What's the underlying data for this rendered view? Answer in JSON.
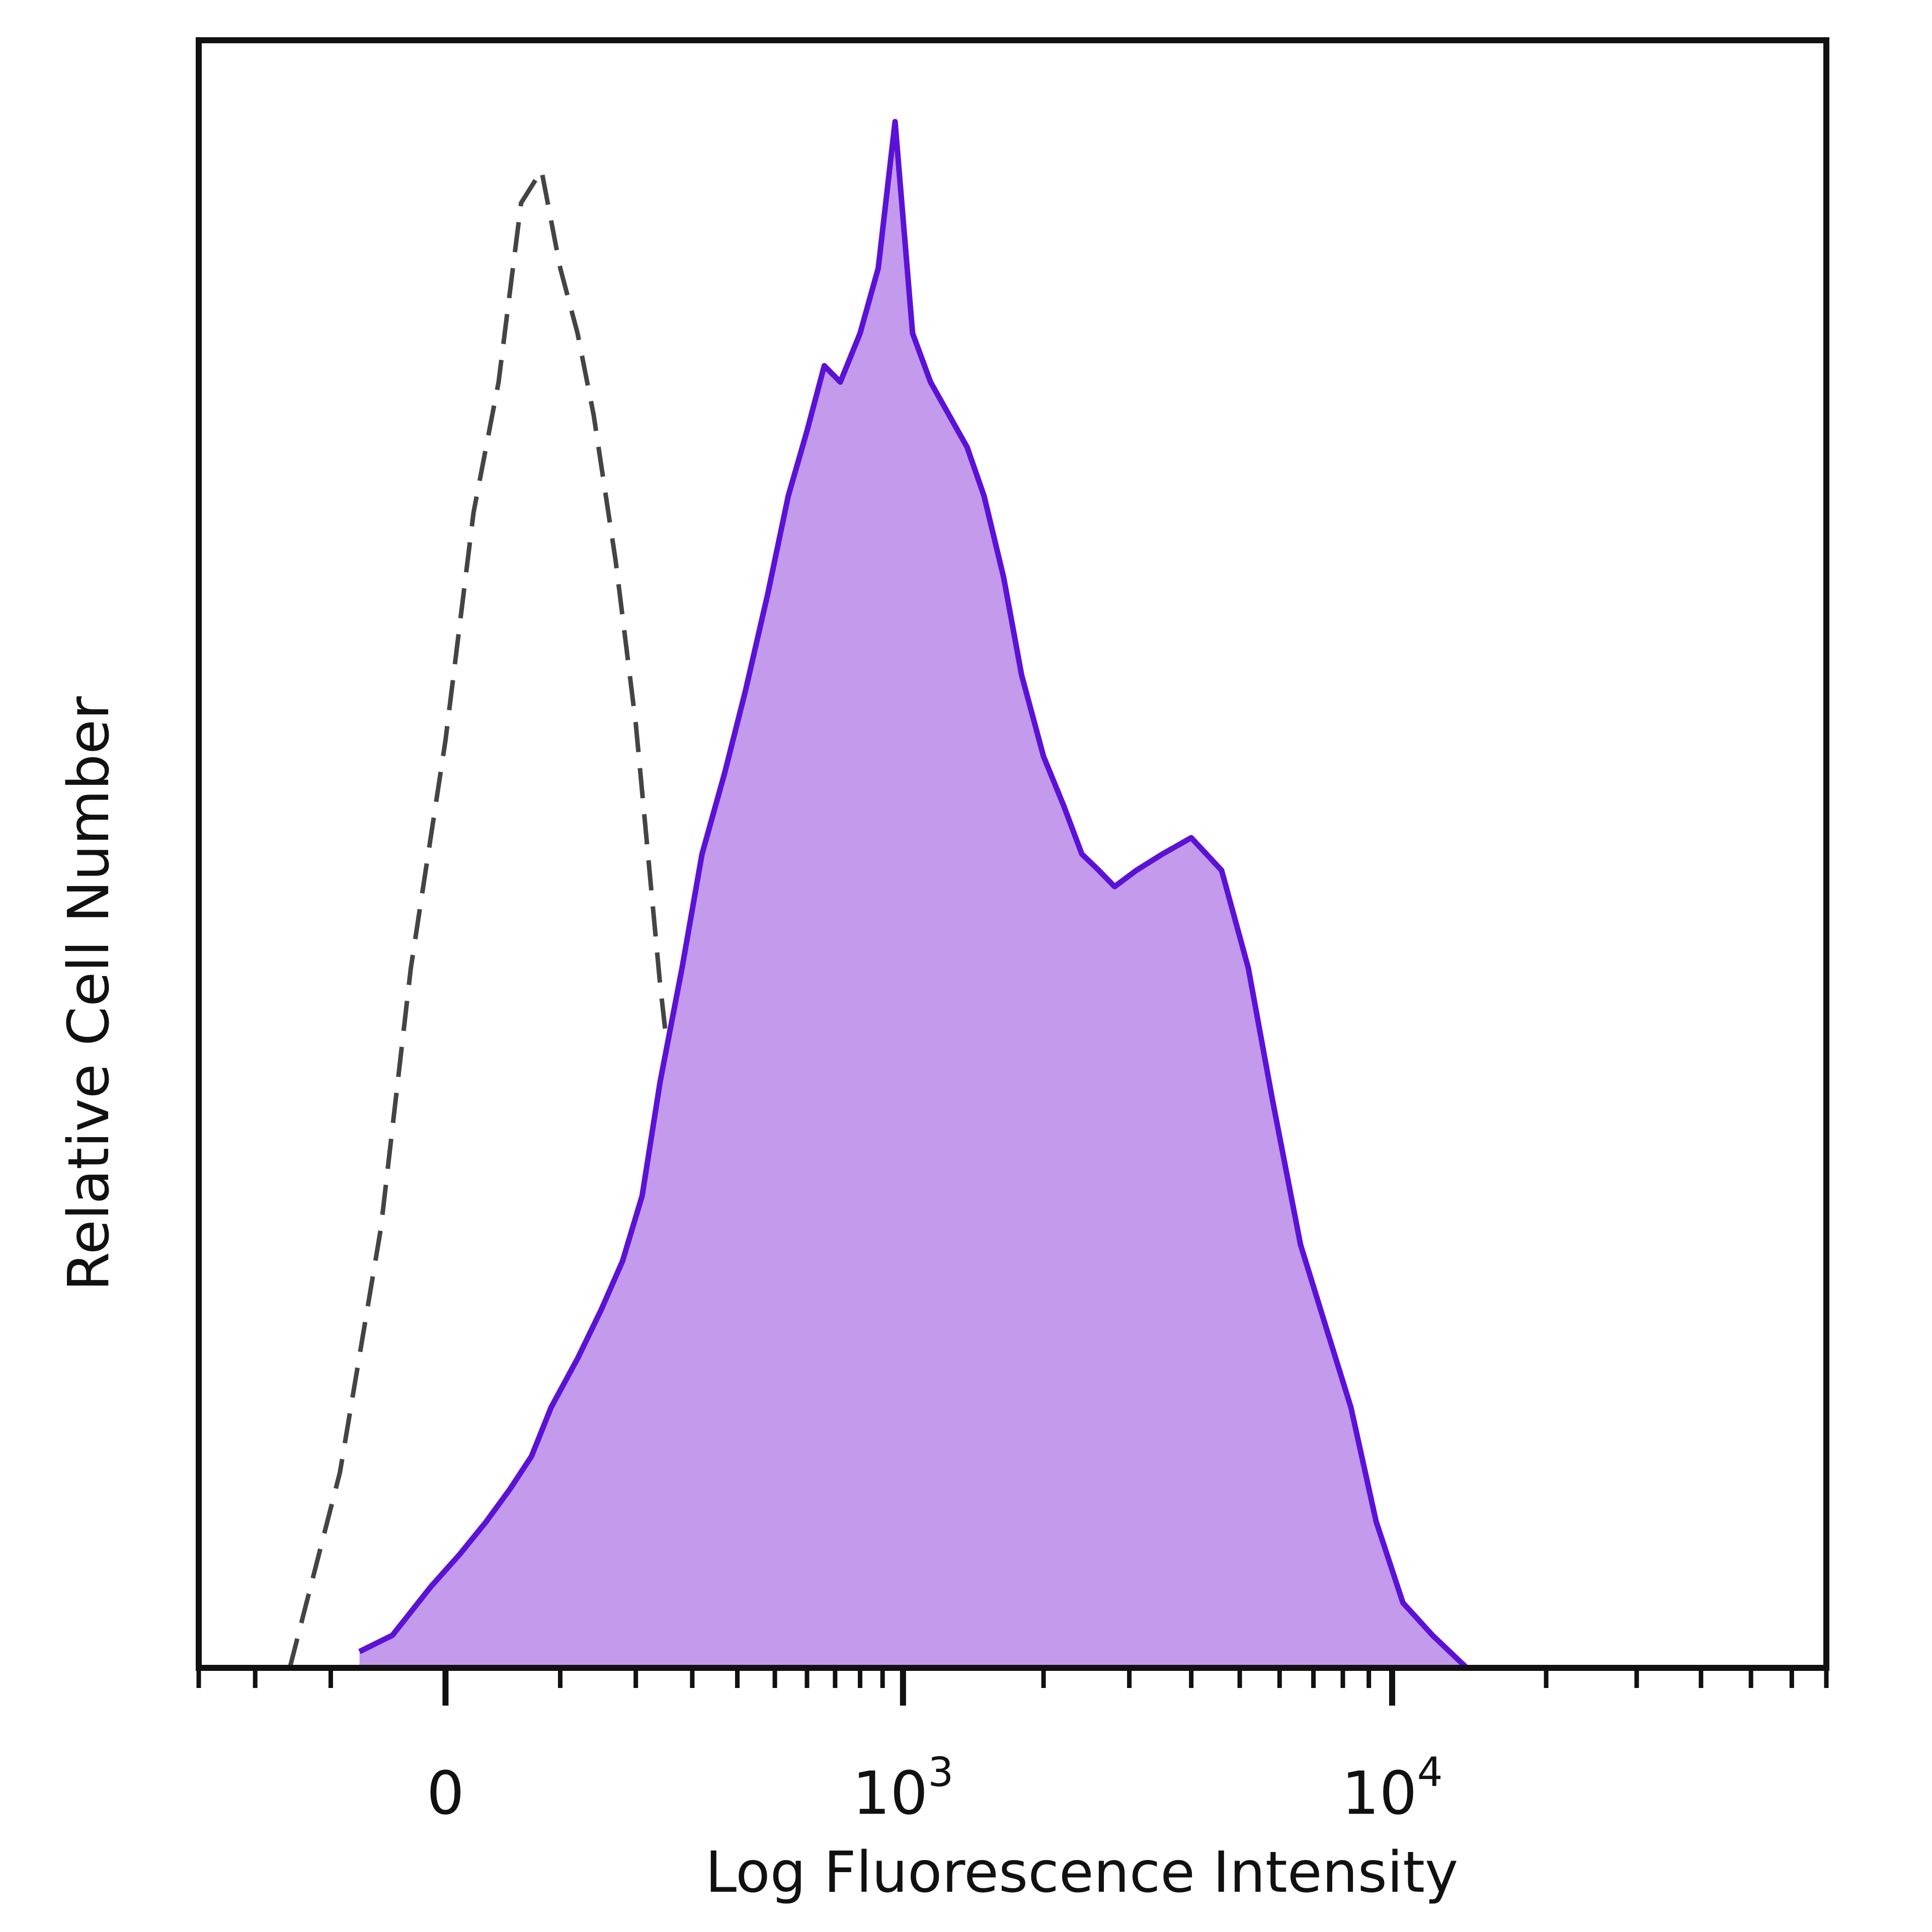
{
  "chart_data": {
    "type": "area",
    "title": "",
    "xlabel": "Log Fluorescence Intensity",
    "ylabel": "Relative Cell Number",
    "x_scale": "biexponential",
    "xlim": [
      -300,
      70000
    ],
    "ylim": [
      0,
      100
    ],
    "grid": false,
    "legend": "none",
    "x_ticks": [
      {
        "base": "0",
        "exp": "",
        "value": 0
      },
      {
        "base": "10",
        "exp": "3",
        "value": 1000
      },
      {
        "base": "10",
        "exp": "4",
        "value": 10000
      }
    ],
    "series": [
      {
        "style": "dashed",
        "color": "#444444",
        "x": [
          -150,
          -90,
          -50,
          -25,
          0,
          20,
          40,
          60,
          80,
          100,
          120,
          140,
          170,
          200,
          240,
          280,
          330,
          380,
          430,
          500,
          580,
          680,
          800,
          950,
          1100
        ],
        "y": [
          0,
          12,
          27,
          43,
          57,
          71,
          79,
          90,
          92,
          86,
          82,
          77,
          68,
          58,
          42,
          30,
          20,
          14,
          8,
          6,
          4,
          3,
          2,
          1,
          0
        ]
      },
      {
        "style": "filled",
        "color": "#5b12d6",
        "fill": "#c39aec",
        "x": [
          -70,
          -40,
          -10,
          10,
          30,
          50,
          70,
          90,
          120,
          150,
          180,
          210,
          240,
          280,
          320,
          370,
          420,
          480,
          540,
          600,
          660,
          720,
          800,
          880,
          960,
          1050,
          1150,
          1260,
          1380,
          1500,
          1650,
          1800,
          2000,
          2200,
          2400,
          2600,
          2800,
          3100,
          3500,
          4000,
          4600,
          5200,
          5800,
          6600,
          7400,
          8300,
          9300,
          10500,
          12000,
          14000
        ],
        "y": [
          1,
          2,
          5,
          7,
          9,
          11,
          13,
          16,
          19,
          22,
          25,
          29,
          36,
          43,
          50,
          55,
          60,
          66,
          72,
          76,
          80,
          79,
          82,
          86,
          95,
          82,
          79,
          77,
          75,
          72,
          67,
          61,
          56,
          53,
          50,
          49,
          48,
          49,
          50,
          51,
          49,
          43,
          35,
          26,
          21,
          16,
          9,
          4,
          2,
          0
        ]
      }
    ]
  }
}
